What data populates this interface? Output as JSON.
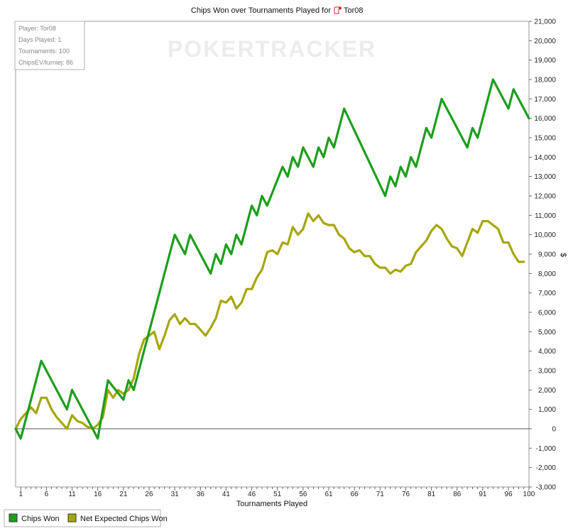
{
  "chart_data": {
    "type": "line",
    "title": "Chips Won over Tournaments Played for",
    "title_player": "Tor08",
    "xlabel": "Tournaments Played",
    "ylabel": "$",
    "xlim": [
      0,
      100
    ],
    "ylim": [
      -3000,
      21000
    ],
    "x_ticks": [
      1,
      6,
      11,
      16,
      21,
      26,
      31,
      36,
      41,
      46,
      51,
      56,
      61,
      66,
      71,
      76,
      81,
      86,
      91,
      96,
      100
    ],
    "y_ticks": [
      -3000,
      -2000,
      -1000,
      0,
      1000,
      2000,
      3000,
      4000,
      5000,
      6000,
      7000,
      8000,
      9000,
      10000,
      11000,
      12000,
      13000,
      14000,
      15000,
      16000,
      17000,
      18000,
      19000,
      20000,
      21000
    ],
    "y_tick_labels": [
      "-3,000",
      "-2,000",
      "-1,000",
      "0",
      "1,000",
      "2,000",
      "3,000",
      "4,000",
      "5,000",
      "6,000",
      "7,000",
      "8,000",
      "9,000",
      "10,000",
      "11,000",
      "12,000",
      "13,000",
      "14,000",
      "15,000",
      "16,000",
      "17,000",
      "18,000",
      "19,000",
      "20,000",
      "21,000"
    ],
    "info_box": [
      "Player: Tor08",
      "Days Played: 1",
      "Tournaments: 100",
      "ChipsEV/turniej: 86"
    ],
    "watermark": "POKERTRACKER",
    "legend_position": "bottom-left",
    "series": [
      {
        "name": "Chips Won",
        "color": "#1c9e1c",
        "points": [
          [
            0,
            0
          ],
          [
            1,
            -500
          ],
          [
            5,
            3500
          ],
          [
            10,
            1000
          ],
          [
            11,
            2000
          ],
          [
            16,
            -500
          ],
          [
            18,
            2500
          ],
          [
            21,
            1500
          ],
          [
            22,
            2500
          ],
          [
            23,
            2000
          ],
          [
            31,
            10000
          ],
          [
            33,
            9000
          ],
          [
            34,
            10000
          ],
          [
            38,
            8000
          ],
          [
            39,
            9000
          ],
          [
            40,
            8500
          ],
          [
            41,
            9500
          ],
          [
            42,
            9000
          ],
          [
            43,
            10000
          ],
          [
            44,
            9500
          ],
          [
            46,
            11500
          ],
          [
            47,
            11000
          ],
          [
            48,
            12000
          ],
          [
            49,
            11500
          ],
          [
            52,
            13500
          ],
          [
            53,
            13000
          ],
          [
            54,
            14000
          ],
          [
            55,
            13500
          ],
          [
            56,
            14500
          ],
          [
            58,
            13500
          ],
          [
            59,
            14500
          ],
          [
            60,
            14000
          ],
          [
            61,
            15000
          ],
          [
            62,
            14500
          ],
          [
            64,
            16500
          ],
          [
            72,
            12000
          ],
          [
            73,
            13000
          ],
          [
            74,
            12500
          ],
          [
            75,
            13500
          ],
          [
            76,
            13000
          ],
          [
            77,
            14000
          ],
          [
            78,
            13500
          ],
          [
            80,
            15500
          ],
          [
            81,
            15000
          ],
          [
            83,
            17000
          ],
          [
            88,
            14500
          ],
          [
            89,
            15500
          ],
          [
            90,
            15000
          ],
          [
            93,
            18000
          ],
          [
            96,
            16500
          ],
          [
            97,
            17500
          ],
          [
            100,
            16000
          ]
        ]
      },
      {
        "name": "Net Expected Chips Won",
        "color": "#a6a60a",
        "points": [
          [
            0,
            0
          ],
          [
            1,
            500
          ],
          [
            3,
            1100
          ],
          [
            4,
            800
          ],
          [
            5,
            1600
          ],
          [
            6,
            1600
          ],
          [
            7,
            1000
          ],
          [
            8,
            600
          ],
          [
            9,
            300
          ],
          [
            10,
            0
          ],
          [
            11,
            700
          ],
          [
            12,
            400
          ],
          [
            13,
            300
          ],
          [
            14,
            100
          ],
          [
            15,
            0
          ],
          [
            16,
            200
          ],
          [
            17,
            600
          ],
          [
            18,
            2000
          ],
          [
            19,
            1600
          ],
          [
            20,
            2000
          ],
          [
            21,
            1800
          ],
          [
            22,
            2000
          ],
          [
            23,
            2600
          ],
          [
            24,
            3800
          ],
          [
            25,
            4600
          ],
          [
            27,
            5000
          ],
          [
            28,
            4100
          ],
          [
            29,
            4800
          ],
          [
            30,
            5600
          ],
          [
            31,
            5900
          ],
          [
            32,
            5400
          ],
          [
            33,
            5700
          ],
          [
            34,
            5400
          ],
          [
            35,
            5400
          ],
          [
            36,
            5100
          ],
          [
            37,
            4800
          ],
          [
            38,
            5200
          ],
          [
            39,
            5700
          ],
          [
            40,
            6600
          ],
          [
            41,
            6500
          ],
          [
            42,
            6800
          ],
          [
            43,
            6200
          ],
          [
            44,
            6500
          ],
          [
            45,
            7200
          ],
          [
            46,
            7200
          ],
          [
            47,
            7800
          ],
          [
            48,
            8200
          ],
          [
            49,
            9100
          ],
          [
            50,
            9200
          ],
          [
            51,
            9000
          ],
          [
            52,
            9600
          ],
          [
            53,
            9500
          ],
          [
            54,
            10400
          ],
          [
            55,
            10000
          ],
          [
            56,
            10300
          ],
          [
            57,
            11100
          ],
          [
            58,
            10700
          ],
          [
            59,
            11000
          ],
          [
            60,
            10600
          ],
          [
            61,
            10500
          ],
          [
            62,
            10500
          ],
          [
            63,
            10000
          ],
          [
            64,
            9800
          ],
          [
            65,
            9300
          ],
          [
            66,
            9100
          ],
          [
            67,
            9200
          ],
          [
            68,
            8900
          ],
          [
            69,
            8900
          ],
          [
            70,
            8500
          ],
          [
            71,
            8300
          ],
          [
            72,
            8300
          ],
          [
            73,
            8000
          ],
          [
            74,
            8200
          ],
          [
            75,
            8100
          ],
          [
            76,
            8400
          ],
          [
            77,
            8500
          ],
          [
            78,
            9100
          ],
          [
            79,
            9400
          ],
          [
            80,
            9700
          ],
          [
            81,
            10200
          ],
          [
            82,
            10500
          ],
          [
            83,
            10300
          ],
          [
            84,
            9800
          ],
          [
            85,
            9400
          ],
          [
            86,
            9300
          ],
          [
            87,
            8900
          ],
          [
            88,
            9600
          ],
          [
            89,
            10300
          ],
          [
            90,
            10100
          ],
          [
            91,
            10700
          ],
          [
            92,
            10700
          ],
          [
            93,
            10500
          ],
          [
            94,
            10300
          ],
          [
            95,
            9600
          ],
          [
            96,
            9600
          ],
          [
            97,
            9000
          ],
          [
            98,
            8600
          ],
          [
            99,
            8600
          ]
        ]
      }
    ]
  }
}
